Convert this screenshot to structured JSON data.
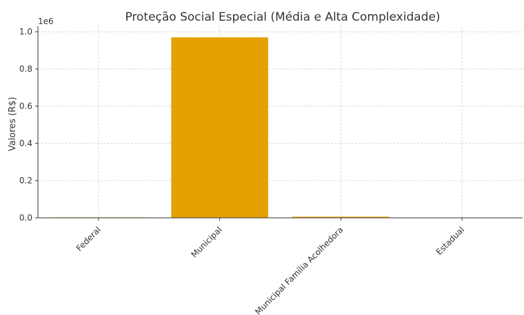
{
  "chart_data": {
    "type": "bar",
    "title": "Proteção Social Especial (Média e Alta Complexidade)",
    "xlabel": "",
    "ylabel": "Valores (R$)",
    "y_scale_label": "1e6",
    "categories": [
      "Federal",
      "Municipal",
      "Municipal Família Acolhedora",
      "Estadual"
    ],
    "values": [
      2500,
      970000,
      6000,
      0
    ],
    "ylim": [
      0,
      1030000
    ],
    "yticks": [
      0,
      200000,
      400000,
      600000,
      800000,
      1000000
    ],
    "ytick_labels": [
      "0.0",
      "0.2",
      "0.4",
      "0.6",
      "0.8",
      "1.0"
    ],
    "grid": true,
    "bar_color": "#E5A100"
  }
}
